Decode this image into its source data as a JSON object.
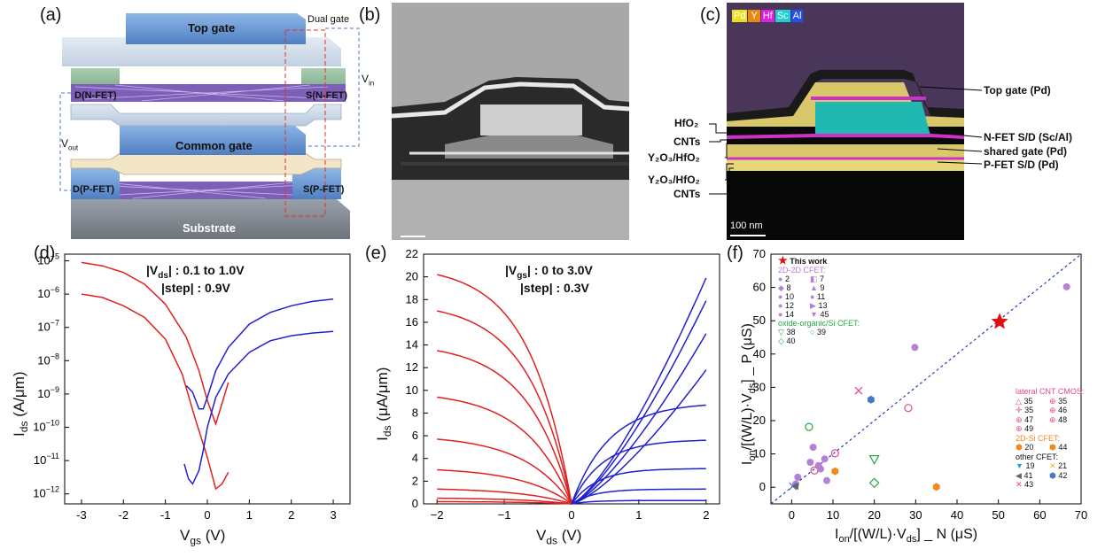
{
  "panels": {
    "a": {
      "label": "(a)",
      "top_gate": "Top gate",
      "dual_gate": "Dual gate",
      "v_in_main": "V",
      "v_in_sub": "in",
      "d_nfet": "D(N-FET)",
      "s_nfet": "S(N-FET)",
      "v_out_main": "V",
      "v_out_sub": "out",
      "common_gate": "Common gate",
      "d_pfet": "D(P-FET)",
      "s_pfet": "S(P-FET)",
      "substrate": "Substrate"
    },
    "b": {
      "label": "(b)"
    },
    "c": {
      "label": "(c)",
      "elements": [
        {
          "name": "Pd",
          "color": "#e8e020"
        },
        {
          "name": "Y",
          "color": "#e88a10"
        },
        {
          "name": "Hf",
          "color": "#e020e0"
        },
        {
          "name": "Sc",
          "color": "#20d0d0"
        },
        {
          "name": "Al",
          "color": "#2050f0"
        }
      ],
      "left": {
        "hfo2": "HfO₂",
        "cnts": "CNTs",
        "y2o3_hfo2": "Y₂O₃/HfO₂",
        "y2o3_hfo2_b": "Y₂O₃/HfO₂",
        "cnts_b": "CNTs"
      },
      "right": {
        "top_gate": "Top gate (Pd)",
        "nfet_sd": "N-FET S/D (Sc/Al)",
        "shared_gate": "shared gate (Pd)",
        "pfet_sd": "P-FET S/D (Pd)"
      },
      "scale": "100 nm"
    },
    "d": {
      "label": "(d)",
      "annot1": "|Vₕₛ| : 0.1 to 1.0V",
      "annot1_main": "|V",
      "annot1_sub": "ds",
      "annot1_rest": "| : 0.1 to 1.0V",
      "annot2": "|step| : 0.9V",
      "ylabel_main": "I",
      "ylabel_sub": "ds",
      "ylabel_rest": " (A/μm)",
      "xlabel_main": "V",
      "xlabel_sub": "gs",
      "xlabel_rest": " (V)"
    },
    "e": {
      "label": "(e)",
      "annot1_main": "|V",
      "annot1_sub": "gs",
      "annot1_rest": "| : 0 to 3.0V",
      "annot2": "|step| : 0.3V",
      "ylabel_main": "I",
      "ylabel_sub": "ds",
      "ylabel_rest": " (μA/μm)",
      "xlabel_main": "V",
      "xlabel_sub": "ds",
      "xlabel_rest": " (V)"
    },
    "f": {
      "label": "(f)",
      "ylabel": "I_on/[(W/L)·V_ds] _ P (μS)",
      "xlabel": "I_on/[(W/L)·V_ds] _ N (μS)",
      "legend_this_work": "This work",
      "legend_2d2d": "2D-2D CFET:",
      "legend_2d2d_items": [
        "2",
        "7",
        "8",
        "9",
        "10",
        "11",
        "12",
        "13",
        "14",
        "45"
      ],
      "legend_oxide": "oxide-organic/Si CFET:",
      "legend_oxide_items": [
        "38",
        "39",
        "40"
      ],
      "legend_lateral": "lateral CNT CMOS:",
      "legend_lateral_items": [
        "35",
        "35",
        "35",
        "46",
        "47",
        "48",
        "49"
      ],
      "legend_2dsi": "2D-Si CFET:",
      "legend_2dsi_items": [
        "20",
        "44"
      ],
      "legend_other": "other CFET:",
      "legend_other_items": [
        "19",
        "21",
        "41",
        "42",
        "43"
      ]
    }
  },
  "chart_data": [
    {
      "type": "line",
      "panel": "d",
      "xlabel": "V_gs (V)",
      "ylabel": "I_ds (A/μm)",
      "xlim": [
        -3.4,
        3.4
      ],
      "ylim_log10": [
        -12.3,
        -4.8
      ],
      "y_scale": "log",
      "xticks": [
        -3,
        -2,
        -1,
        0,
        1,
        2,
        3
      ],
      "yticks_exp": [
        -12,
        -11,
        -10,
        -9,
        -8,
        -7,
        -6,
        -5
      ],
      "series": [
        {
          "color": "#e02020",
          "points": [
            [
              -3.0,
              -5.05
            ],
            [
              -2.5,
              -5.15
            ],
            [
              -2.0,
              -5.35
            ],
            [
              -1.5,
              -5.7
            ],
            [
              -1.0,
              -6.3
            ],
            [
              -0.5,
              -7.3
            ],
            [
              -0.2,
              -8.3
            ],
            [
              0.0,
              -9.2
            ],
            [
              0.2,
              -9.9
            ],
            [
              0.5,
              -8.65
            ]
          ]
        },
        {
          "color": "#e02020",
          "points": [
            [
              -3.0,
              -6.0
            ],
            [
              -2.5,
              -6.1
            ],
            [
              -2.0,
              -6.35
            ],
            [
              -1.5,
              -6.7
            ],
            [
              -1.0,
              -7.35
            ],
            [
              -0.6,
              -8.4
            ],
            [
              -0.3,
              -9.7
            ],
            [
              0.0,
              -10.9
            ],
            [
              0.2,
              -11.85
            ],
            [
              0.35,
              -11.7
            ],
            [
              0.5,
              -11.35
            ]
          ]
        },
        {
          "color": "#2020d0",
          "points": [
            [
              -0.5,
              -8.75
            ],
            [
              -0.35,
              -8.95
            ],
            [
              -0.2,
              -9.45
            ],
            [
              -0.1,
              -9.45
            ],
            [
              0.0,
              -9.1
            ],
            [
              0.2,
              -8.3
            ],
            [
              0.5,
              -7.6
            ],
            [
              1.0,
              -6.9
            ],
            [
              1.5,
              -6.55
            ],
            [
              2.0,
              -6.35
            ],
            [
              2.5,
              -6.22
            ],
            [
              3.0,
              -6.15
            ]
          ]
        },
        {
          "color": "#2020d0",
          "points": [
            [
              -0.55,
              -11.1
            ],
            [
              -0.45,
              -11.55
            ],
            [
              -0.35,
              -11.7
            ],
            [
              -0.2,
              -11.3
            ],
            [
              -0.1,
              -10.7
            ],
            [
              0.0,
              -10.0
            ],
            [
              0.2,
              -9.1
            ],
            [
              0.5,
              -8.4
            ],
            [
              1.0,
              -7.75
            ],
            [
              1.5,
              -7.4
            ],
            [
              2.0,
              -7.25
            ],
            [
              2.5,
              -7.17
            ],
            [
              3.0,
              -7.12
            ]
          ]
        }
      ]
    },
    {
      "type": "line",
      "panel": "e",
      "xlabel": "V_ds (V)",
      "ylabel": "I_ds (μA/μm)",
      "xlim": [
        -2.2,
        2.2
      ],
      "ylim": [
        0,
        22
      ],
      "xticks": [
        -2,
        -1,
        0,
        1,
        2
      ],
      "yticks": [
        0,
        2,
        4,
        6,
        8,
        10,
        12,
        14,
        16,
        18,
        20,
        22
      ],
      "red_end_values": [
        20.2,
        17.0,
        13.5,
        9.4,
        5.7,
        3.0,
        1.3,
        0.5,
        0.2
      ],
      "blue_end_values": [
        19.9,
        17.9,
        15.0,
        11.8,
        8.7,
        5.6,
        3.1,
        1.3,
        0.3
      ]
    },
    {
      "type": "scatter",
      "panel": "f",
      "xlabel": "I_on/[(W/L)·V_ds] _ N (μS)",
      "ylabel": "I_on/[(W/L)·V_ds] _ P (μS)",
      "xlim": [
        -5,
        70
      ],
      "ylim": [
        -5,
        70
      ],
      "xticks": [
        0,
        10,
        20,
        30,
        40,
        50,
        60,
        70
      ],
      "yticks": [
        0,
        10,
        20,
        30,
        40,
        50,
        60,
        70
      ],
      "diagonal": true,
      "points": [
        {
          "x": 50.3,
          "y": 49.7,
          "marker": "star",
          "color": "#e01010",
          "label": "This work"
        },
        {
          "x": 66.5,
          "y": 60.2,
          "marker": "circle",
          "color": "#b77fd6"
        },
        {
          "x": 29.8,
          "y": 42.0,
          "marker": "circle",
          "color": "#b77fd6"
        },
        {
          "x": 16.2,
          "y": 29.0,
          "marker": "x",
          "color": "#e04a90"
        },
        {
          "x": 28.2,
          "y": 23.8,
          "marker": "circle-open",
          "color": "#e04a90"
        },
        {
          "x": 19.2,
          "y": 26.3,
          "marker": "hex",
          "color": "#4a78c8"
        },
        {
          "x": 4.2,
          "y": 18.1,
          "marker": "circle-open",
          "color": "#22aa44"
        },
        {
          "x": 20.0,
          "y": 8.4,
          "marker": "tri-down",
          "color": "#22aa44"
        },
        {
          "x": 20.0,
          "y": 1.3,
          "marker": "diamond",
          "color": "#22aa44"
        },
        {
          "x": 35.0,
          "y": 0.1,
          "marker": "hex",
          "color": "#f08a20"
        },
        {
          "x": 10.5,
          "y": 4.8,
          "marker": "hex",
          "color": "#f08a20"
        },
        {
          "x": 5.2,
          "y": 12.0,
          "marker": "circle",
          "color": "#b77fd6"
        },
        {
          "x": 10.5,
          "y": 10.2,
          "marker": "circle-open",
          "color": "#e04a90"
        },
        {
          "x": 4.5,
          "y": 7.5,
          "marker": "circle",
          "color": "#b77fd6"
        },
        {
          "x": 6.5,
          "y": 6.5,
          "marker": "circle",
          "color": "#b77fd6"
        },
        {
          "x": 8.0,
          "y": 8.5,
          "marker": "circle",
          "color": "#b77fd6"
        },
        {
          "x": 5.5,
          "y": 5.0,
          "marker": "circle-open",
          "color": "#e04a90"
        },
        {
          "x": 7.0,
          "y": 5.5,
          "marker": "circle",
          "color": "#b77fd6"
        },
        {
          "x": 8.5,
          "y": 2.0,
          "marker": "circle",
          "color": "#b77fd6"
        },
        {
          "x": 1.5,
          "y": 3.0,
          "marker": "circle",
          "color": "#b77fd6"
        },
        {
          "x": 1.0,
          "y": 1.0,
          "marker": "circle",
          "color": "#b77fd6"
        },
        {
          "x": 0.3,
          "y": 0.3,
          "marker": "x",
          "color": "#4a78c8"
        },
        {
          "x": 0.8,
          "y": 0.3,
          "marker": "tri-left",
          "color": "#666666"
        }
      ]
    }
  ]
}
